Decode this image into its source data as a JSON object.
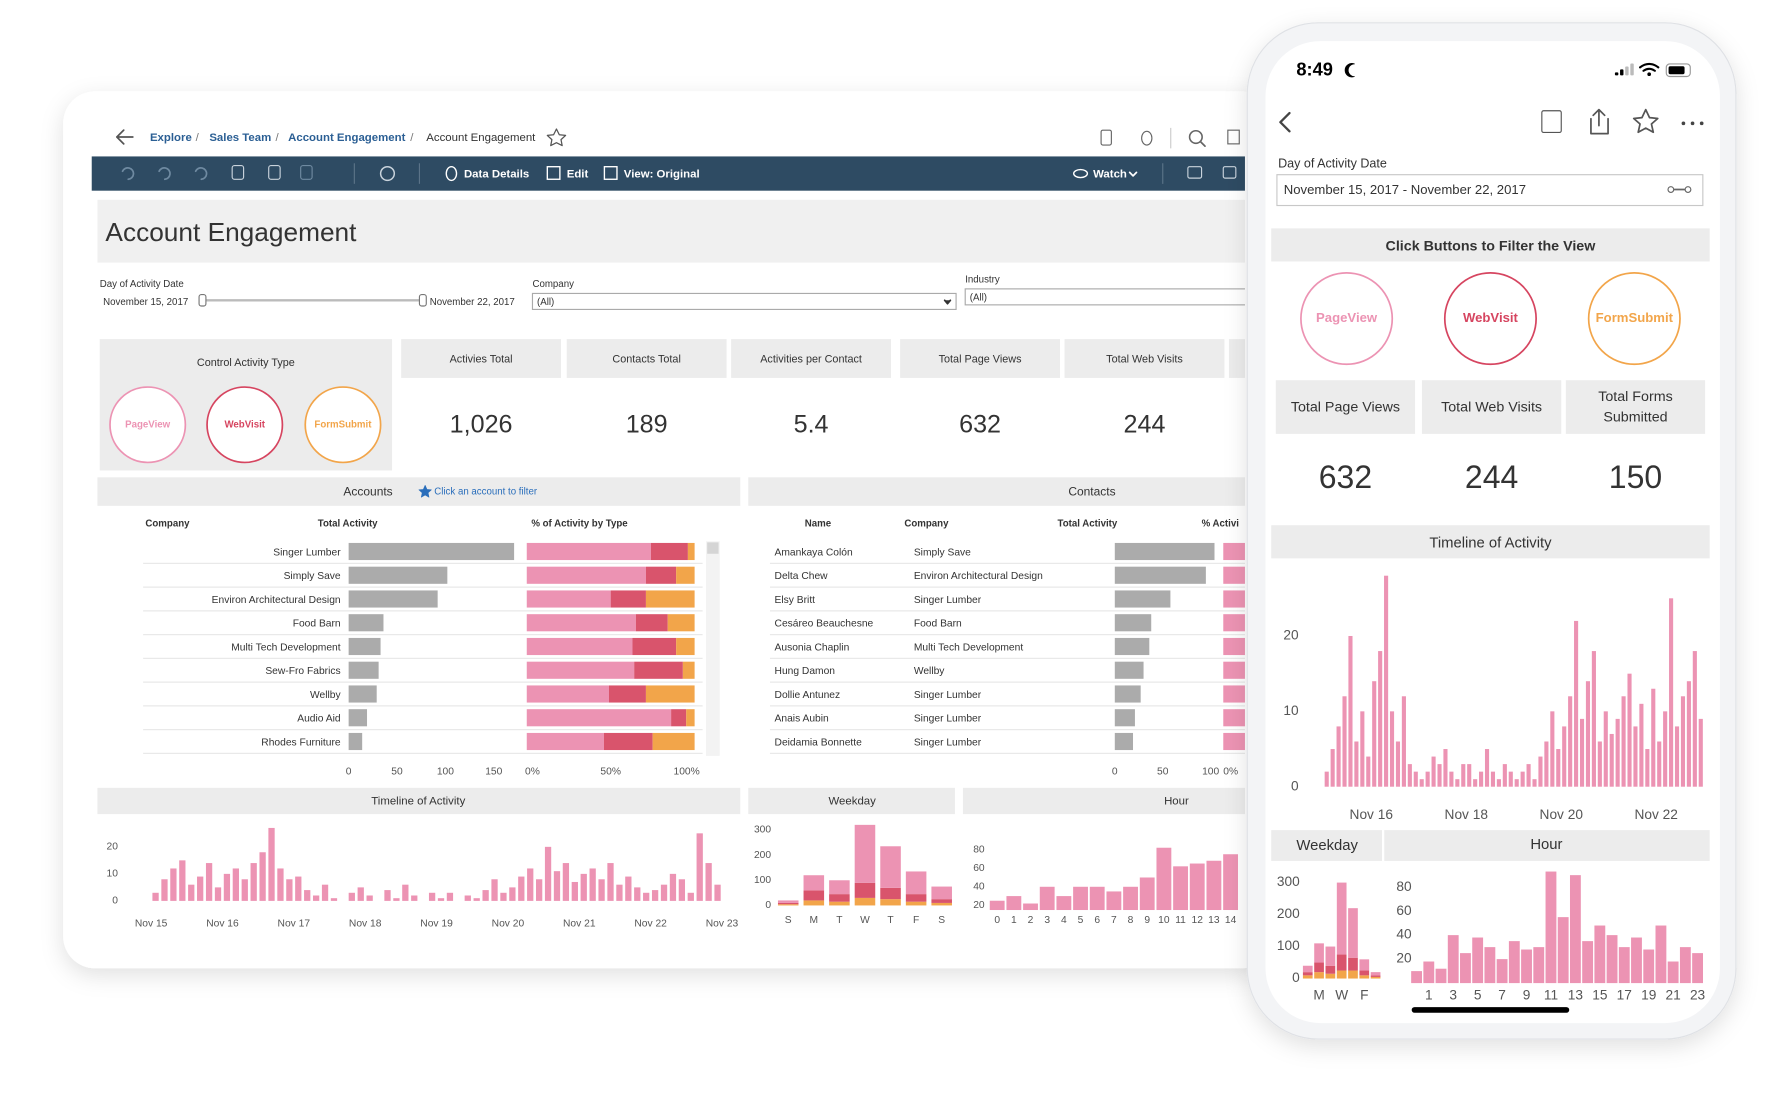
{
  "desktop": {
    "breadcrumb": [
      "Explore",
      "Sales Team",
      "Account Engagement",
      "Account Engagement"
    ],
    "separator": "/",
    "toolbar": {
      "data_details": "Data Details",
      "edit": "Edit",
      "view": "View: Original",
      "watch": "Watch"
    },
    "title": "Account Engagement",
    "filters": {
      "date_label": "Day of Activity Date",
      "date_start": "November 15, 2017",
      "date_end": "November 22, 2017",
      "company_label": "Company",
      "company_value": "(All)",
      "industry_label": "Industry",
      "industry_value": "(All)"
    },
    "control": {
      "title": "Control Activity Type",
      "buttons": [
        "PageView",
        "WebVisit",
        "FormSubmit"
      ]
    },
    "kpis": [
      {
        "label": "Activies Total",
        "value": "1,026"
      },
      {
        "label": "Contacts Total",
        "value": "189"
      },
      {
        "label": "Activities per Contact",
        "value": "5.4"
      },
      {
        "label": "Total Page Views",
        "value": "632"
      },
      {
        "label": "Total Web Visits",
        "value": "244"
      }
    ],
    "accounts": {
      "title": "Accounts",
      "hint": "Click an account to filter",
      "columns": [
        "Company",
        "Total Activity",
        "% of Activity by Type"
      ],
      "rows": [
        "Singer Lumber",
        "Simply Save",
        "Environ Architectural Design",
        "Food Barn",
        "Multi Tech Development",
        "Sew-Fro Fabrics",
        "Wellby",
        "Audio Aid",
        "Rhodes Furniture"
      ],
      "total_activity": [
        171,
        102,
        92,
        36,
        33,
        31,
        29,
        19,
        14
      ],
      "color": "#ababab",
      "xlim": [
        0,
        177
      ],
      "xticks": [
        0,
        50,
        100,
        150
      ],
      "pct_series": [
        {
          "name": "PageView",
          "color": "#ec93b3",
          "values": [
            74,
            71,
            50,
            65,
            63,
            64,
            49,
            86,
            46
          ]
        },
        {
          "name": "WebVisit",
          "color": "#d9546c",
          "values": [
            22,
            18,
            21,
            19,
            26,
            29,
            22,
            9,
            29
          ]
        },
        {
          "name": "FormSubmit",
          "color": "#f2a54a",
          "values": [
            4,
            11,
            29,
            16,
            11,
            7,
            29,
            5,
            25
          ]
        }
      ],
      "pct_xlim": [
        0,
        100
      ],
      "pct_ticks": [
        {
          "value": 0,
          "label": "0%"
        },
        {
          "value": 50,
          "label": "50%"
        },
        {
          "value": 100,
          "label": "100%"
        }
      ]
    },
    "contacts": {
      "title": "Contacts",
      "columns": [
        "Name",
        "Company",
        "Total Activity",
        "% Activi"
      ],
      "names": [
        "Amankaya Colón",
        "Delta Chew",
        "Elsy Britt",
        "Cesáreo Beauchesne",
        "Ausonia Chaplin",
        "Hung Damon",
        "Dollie Antunez",
        "Anais Aubin",
        "Deidamia Bonnette"
      ],
      "companies": [
        "Simply Save",
        "Environ Architectural Design",
        "Singer Lumber",
        "Food Barn",
        "Multi Tech Development",
        "Wellby",
        "Singer Lumber",
        "Singer Lumber",
        "Singer Lumber"
      ],
      "total_activity": [
        104,
        95,
        58,
        38,
        36,
        30,
        27,
        21,
        19
      ],
      "color": "#ababab",
      "xlim": [
        0,
        106
      ],
      "xticks": [
        0,
        50,
        100
      ],
      "pct_ticks": [
        {
          "value": 0,
          "label": "0%"
        }
      ]
    },
    "timeline": {
      "type": "bar",
      "title": "Timeline of Activity",
      "color": "#ec93b3",
      "x_labels": [
        "Nov 15",
        "Nov 16",
        "Nov 17",
        "Nov 18",
        "Nov 19",
        "Nov 20",
        "Nov 21",
        "Nov 22",
        "Nov 23"
      ],
      "values": [
        3,
        8,
        12,
        15,
        6,
        9,
        14,
        5,
        10,
        12,
        8,
        14,
        18,
        27,
        12,
        8,
        9,
        4,
        2,
        6,
        1,
        0,
        3,
        5,
        2,
        0,
        4,
        1,
        6,
        2,
        0,
        3,
        1,
        3,
        0,
        2,
        1,
        4,
        8,
        3,
        5,
        9,
        12,
        8,
        20,
        11,
        14,
        7,
        10,
        12,
        8,
        14,
        6,
        9,
        5,
        3,
        4,
        6,
        10,
        8,
        3,
        25,
        14,
        6
      ],
      "ylim": [
        0,
        30
      ],
      "yticks": [
        0,
        10,
        20
      ]
    },
    "weekday": {
      "type": "bar",
      "title": "Weekday",
      "categories": [
        "S",
        "M",
        "T",
        "W",
        "T",
        "F",
        "S"
      ],
      "series": [
        {
          "name": "FormSubmit",
          "color": "#f2a54a",
          "values": [
            5,
            20,
            15,
            30,
            25,
            15,
            10
          ]
        },
        {
          "name": "WebVisit",
          "color": "#d9546c",
          "values": [
            5,
            40,
            30,
            60,
            45,
            30,
            15
          ]
        },
        {
          "name": "PageView",
          "color": "#ec93b3",
          "values": [
            10,
            60,
            55,
            230,
            165,
            90,
            50
          ]
        }
      ],
      "ylim": [
        0,
        340
      ],
      "yticks": [
        0,
        100,
        200,
        300
      ]
    },
    "hour": {
      "type": "bar",
      "title": "Hour",
      "color": "#ec93b3",
      "categories": [
        0,
        1,
        2,
        3,
        4,
        5,
        6,
        7,
        8,
        9,
        10,
        11,
        12,
        13,
        14
      ],
      "values": [
        25,
        30,
        22,
        40,
        30,
        40,
        40,
        35,
        40,
        50,
        82,
        62,
        65,
        68,
        75
      ],
      "ylim": [
        15,
        85
      ],
      "yticks": [
        20,
        40,
        60,
        80
      ]
    }
  },
  "phone": {
    "time": "8:49",
    "date_label": "Day of Activity Date",
    "date_value": "November 15, 2017 - November 22, 2017",
    "filter_title": "Click Buttons to Filter the View",
    "buttons": [
      "PageView",
      "WebVisit",
      "FormSubmit"
    ],
    "kpis": [
      {
        "label": [
          "Total Page Views"
        ],
        "value": "632"
      },
      {
        "label": [
          "Total Web Visits"
        ],
        "value": "244"
      },
      {
        "label": [
          "Total Forms",
          "Submitted"
        ],
        "value": "150"
      }
    ],
    "timeline": {
      "type": "bar",
      "title": "Timeline of Activity",
      "color": "#ec93b3",
      "x_labels": [
        "Nov 16",
        "Nov 18",
        "Nov 20",
        "Nov 22"
      ],
      "values": [
        2,
        5,
        8,
        12,
        20,
        6,
        10,
        4,
        14,
        18,
        28,
        10,
        6,
        12,
        3,
        2,
        1,
        2,
        4,
        3,
        5,
        2,
        1,
        3,
        3,
        1,
        2,
        5,
        2,
        1,
        3,
        2,
        1,
        2,
        3,
        1,
        4,
        6,
        10,
        5,
        8,
        12,
        22,
        9,
        14,
        18,
        6,
        10,
        7,
        9,
        12,
        15,
        8,
        11,
        5,
        13,
        6,
        10,
        25,
        8,
        12,
        14,
        18,
        9
      ],
      "ylim": [
        0,
        30
      ],
      "yticks": [
        0,
        10,
        20
      ]
    },
    "weekday": {
      "type": "bar",
      "title": "Weekday",
      "categories": [
        null,
        "M",
        null,
        "W",
        null,
        "F",
        null
      ],
      "series": [
        {
          "name": "FormSubmit",
          "color": "#f2a54a",
          "values": [
            10,
            20,
            15,
            25,
            25,
            10,
            5
          ]
        },
        {
          "name": "WebVisit",
          "color": "#d9546c",
          "values": [
            10,
            30,
            25,
            50,
            40,
            15,
            5
          ]
        },
        {
          "name": "PageView",
          "color": "#ec93b3",
          "values": [
            20,
            60,
            60,
            225,
            155,
            35,
            10
          ]
        }
      ],
      "ylim": [
        0,
        357
      ],
      "yticks": [
        0,
        100,
        200,
        300
      ]
    },
    "hour": {
      "type": "bar",
      "title": "Hour",
      "color": "#ec93b3",
      "categories": [
        null,
        1,
        null,
        3,
        null,
        5,
        null,
        7,
        null,
        9,
        null,
        11,
        null,
        13,
        null,
        15,
        null,
        17,
        null,
        19,
        null,
        21,
        null,
        23
      ],
      "values": [
        10,
        18,
        12,
        40,
        25,
        38,
        30,
        20,
        35,
        28,
        30,
        93,
        55,
        90,
        35,
        48,
        40,
        30,
        38,
        28,
        48,
        18,
        30,
        25
      ],
      "ylim": [
        0,
        99
      ],
      "yticks": [
        20,
        40,
        60,
        80
      ]
    }
  }
}
